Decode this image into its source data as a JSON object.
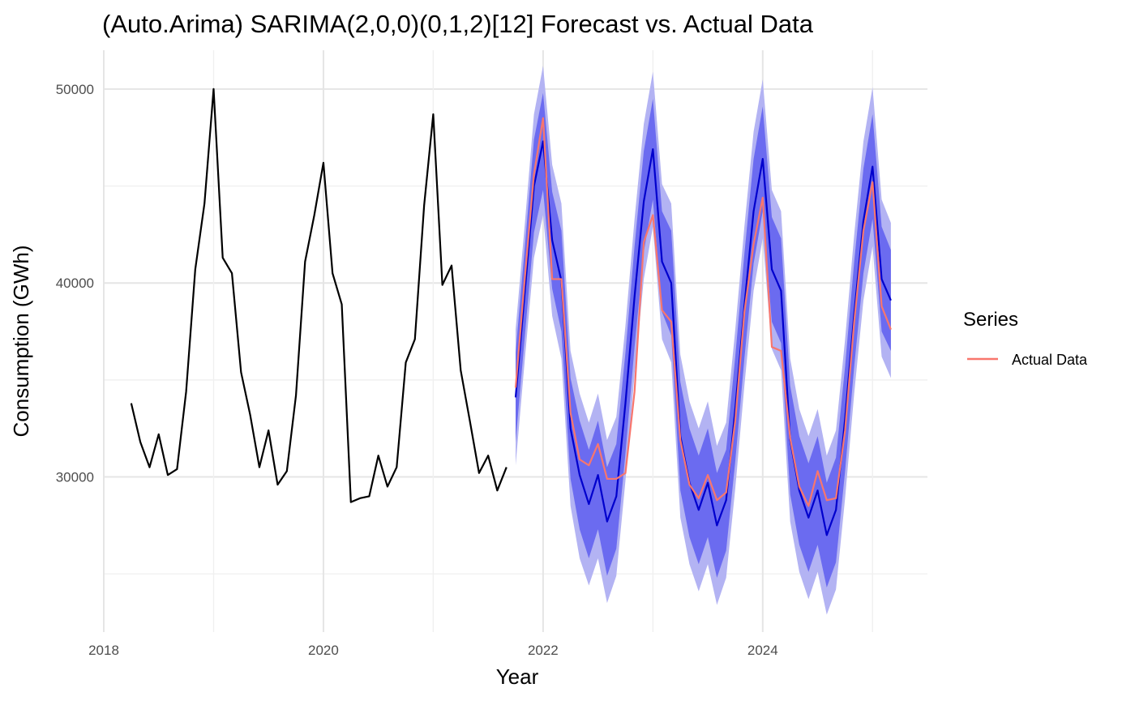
{
  "chart_data": {
    "type": "line",
    "title": "(Auto.Arima) SARIMA(2,0,0)(0,1,2)[12] Forecast vs. Actual Data",
    "xlabel": "Year",
    "ylabel": "Consumption (GWh)",
    "xlim": [
      2018,
      2025.5
    ],
    "ylim": [
      22000,
      52000
    ],
    "x_ticks": [
      2018,
      2020,
      2022,
      2024
    ],
    "y_ticks": [
      30000,
      40000,
      50000
    ],
    "grid": true,
    "legend": {
      "title": "Series",
      "position": "right",
      "entries": [
        {
          "label": "Actual Data",
          "color": "#f8766d"
        }
      ]
    },
    "history": {
      "color": "#000000",
      "x": [
        2018.25,
        2018.333,
        2018.417,
        2018.5,
        2018.583,
        2018.667,
        2018.75,
        2018.833,
        2018.917,
        2019.0,
        2019.083,
        2019.167,
        2019.25,
        2019.333,
        2019.417,
        2019.5,
        2019.583,
        2019.667,
        2019.75,
        2019.833,
        2019.917,
        2020.0,
        2020.083,
        2020.167,
        2020.25,
        2020.333,
        2020.417,
        2020.5,
        2020.583,
        2020.667,
        2020.75,
        2020.833,
        2020.917,
        2021.0,
        2021.083,
        2021.167,
        2021.25,
        2021.333,
        2021.417,
        2021.5,
        2021.583,
        2021.667
      ],
      "y": [
        33800,
        31800,
        30500,
        32200,
        30100,
        30400,
        34400,
        40700,
        44100,
        50000,
        41300,
        40500,
        35400,
        33200,
        30500,
        32400,
        29600,
        30300,
        34200,
        41100,
        43500,
        46200,
        40500,
        38900,
        28700,
        28900,
        29000,
        31100,
        29500,
        30500,
        35900,
        37100,
        44000,
        48700,
        39900,
        40900,
        35500,
        32900,
        30200,
        31100,
        29300,
        30500
      ]
    },
    "forecast": {
      "color": "#0000cd",
      "band80_color": "#6b6bf0",
      "band95_color": "#b3b3f3",
      "x": [
        2021.75,
        2021.833,
        2021.917,
        2022.0,
        2022.083,
        2022.167,
        2022.25,
        2022.333,
        2022.417,
        2022.5,
        2022.583,
        2022.667,
        2022.75,
        2022.833,
        2022.917,
        2023.0,
        2023.083,
        2023.167,
        2023.25,
        2023.333,
        2023.417,
        2023.5,
        2023.583,
        2023.667,
        2023.75,
        2023.833,
        2023.917,
        2024.0,
        2024.083,
        2024.167,
        2024.25,
        2024.333,
        2024.417,
        2024.5,
        2024.583,
        2024.667,
        2024.75,
        2024.833,
        2024.917,
        2025.0,
        2025.083,
        2025.167
      ],
      "mean": [
        34100,
        39500,
        45000,
        47300,
        42200,
        40100,
        32500,
        30100,
        28600,
        30100,
        27700,
        29000,
        33800,
        39300,
        44200,
        46900,
        41100,
        40000,
        32100,
        29700,
        28300,
        29700,
        27500,
        28800,
        33500,
        38800,
        43700,
        46400,
        40700,
        39600,
        31900,
        29300,
        27900,
        29300,
        27000,
        28300,
        33000,
        38400,
        43200,
        46000,
        40200,
        39100
      ],
      "lo80": [
        31800,
        37200,
        42600,
        44800,
        39700,
        37500,
        29900,
        27300,
        25800,
        27300,
        24900,
        26300,
        31200,
        36700,
        41600,
        44300,
        38500,
        37300,
        29300,
        26900,
        25500,
        26900,
        24800,
        26200,
        30800,
        36100,
        41000,
        43700,
        38000,
        36900,
        29100,
        26500,
        25100,
        26500,
        24300,
        25600,
        30300,
        35700,
        40500,
        43300,
        37500,
        36500
      ],
      "hi80": [
        36400,
        41800,
        47400,
        49800,
        44700,
        42700,
        35100,
        32900,
        31400,
        32900,
        30500,
        31700,
        36400,
        41900,
        46800,
        49500,
        43700,
        42700,
        34900,
        32500,
        31100,
        32500,
        30200,
        31400,
        36200,
        41500,
        46400,
        49100,
        43400,
        42300,
        34700,
        32100,
        30700,
        32100,
        29700,
        31000,
        35700,
        41100,
        45900,
        48700,
        42900,
        41700
      ],
      "lo95": [
        30600,
        36000,
        41300,
        43500,
        38300,
        36100,
        28500,
        25800,
        24400,
        25800,
        23500,
        24900,
        29800,
        35300,
        40200,
        42900,
        37100,
        35900,
        27900,
        25500,
        24100,
        25500,
        23400,
        24800,
        29400,
        34700,
        39600,
        42300,
        36600,
        35500,
        27700,
        25100,
        23700,
        25100,
        22900,
        24200,
        28900,
        34300,
        39100,
        41900,
        36200,
        35100
      ],
      "hi95": [
        37600,
        43000,
        48700,
        51200,
        46100,
        44100,
        36500,
        34300,
        32800,
        34300,
        31900,
        33100,
        37800,
        43300,
        48200,
        50900,
        45100,
        44100,
        36300,
        33900,
        32500,
        33900,
        31600,
        32800,
        37600,
        42900,
        47800,
        50500,
        44800,
        43700,
        36100,
        33500,
        32100,
        33500,
        31100,
        32400,
        37100,
        42500,
        47300,
        50100,
        44300,
        43100
      ]
    },
    "actual": {
      "name": "Actual Data",
      "color": "#f8766d",
      "x": [
        2021.75,
        2021.833,
        2021.917,
        2022.0,
        2022.083,
        2022.167,
        2022.25,
        2022.333,
        2022.417,
        2022.5,
        2022.583,
        2022.667,
        2022.75,
        2022.833,
        2022.917,
        2023.0,
        2023.083,
        2023.167,
        2023.25,
        2023.333,
        2023.417,
        2023.5,
        2023.583,
        2023.667,
        2023.75,
        2023.833,
        2023.917,
        2024.0,
        2024.083,
        2024.167,
        2024.25,
        2024.333,
        2024.417,
        2024.5,
        2024.583,
        2024.667,
        2024.75,
        2024.833,
        2024.917,
        2025.0,
        2025.083,
        2025.167
      ],
      "y": [
        34600,
        40200,
        45600,
        48500,
        40200,
        40200,
        33300,
        30900,
        30600,
        31700,
        29900,
        29900,
        30200,
        34400,
        42100,
        43500,
        38600,
        38000,
        31900,
        29600,
        28900,
        30100,
        28800,
        29200,
        32900,
        38500,
        42000,
        44400,
        36700,
        36500,
        32000,
        29500,
        28500,
        30300,
        28800,
        28900,
        32400,
        38000,
        42700,
        45200,
        38800,
        37600
      ]
    }
  }
}
